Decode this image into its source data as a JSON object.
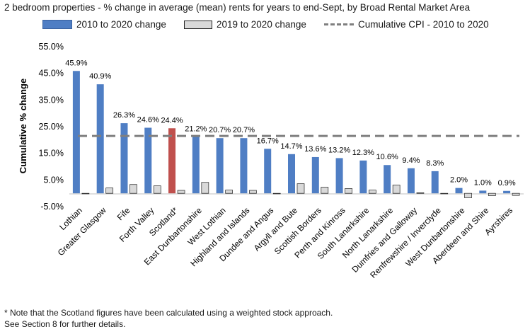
{
  "chart_data": {
    "type": "bar",
    "title": "2 bedroom properties - % change in average (mean) rents for years to end-Sept, by Broad Rental Market Area",
    "ylabel": "Cumulative % change",
    "ylim": [
      -5,
      55
    ],
    "yticks": [
      "55.0%",
      "45.0%",
      "35.0%",
      "25.0%",
      "15.0%",
      "5.0%",
      "-5.0%"
    ],
    "ytick_values": [
      55,
      45,
      35,
      25,
      15,
      5,
      -5
    ],
    "categories": [
      "Lothian",
      "Greater Glasgow",
      "Fife",
      "Forth Valley",
      "Scotland*",
      "East Dunbartonshire",
      "West Lothian",
      "Highland and Islands",
      "Dundee and Angus",
      "Argyll and Bute",
      "Scottish Borders",
      "Perth and Kinross",
      "South Lanarkshire",
      "North Lanarkshire",
      "Dumfries and Galloway",
      "Renfrewshire / Inverclyde",
      "West Dunbartonshire",
      "Aberdeen and Shire",
      "Ayrshires"
    ],
    "highlight_category": "Scotland*",
    "series": [
      {
        "name": "2010 to 2020 change",
        "color": "#4f7ec4",
        "highlight_color": "#c0504d",
        "values": [
          45.9,
          40.9,
          26.3,
          24.6,
          24.4,
          21.2,
          20.7,
          20.7,
          16.7,
          14.7,
          13.6,
          13.2,
          12.3,
          10.6,
          9.4,
          8.3,
          2.0,
          1.0,
          0.9
        ],
        "labels": [
          "45.9%",
          "40.9%",
          "26.3%",
          "24.6%",
          "24.4%",
          "21.2%",
          "20.7%",
          "20.7%",
          "16.7%",
          "14.7%",
          "13.6%",
          "13.2%",
          "12.3%",
          "10.6%",
          "9.4%",
          "8.3%",
          "2.0%",
          "1.0%",
          "0.9%"
        ]
      },
      {
        "name": "2019 to 2020 change",
        "color": "#d9d9d9",
        "values": [
          -0.1,
          2.0,
          3.3,
          2.8,
          1.1,
          4.1,
          1.2,
          1.1,
          -0.1,
          3.6,
          2.3,
          1.8,
          1.2,
          3.1,
          0.2,
          -0.2,
          -1.7,
          -0.9,
          -0.8
        ]
      }
    ],
    "reference_line": {
      "name": "Cumulative CPI - 2010 to 2020",
      "value": 21.5,
      "color": "#7f7f7f"
    },
    "legend": {
      "position": "top"
    },
    "grid": false
  },
  "note": {
    "line1": "* Note that the Scotland figures have been calculated using a weighted stock approach.",
    "line2": "See Section 8 for further details."
  }
}
